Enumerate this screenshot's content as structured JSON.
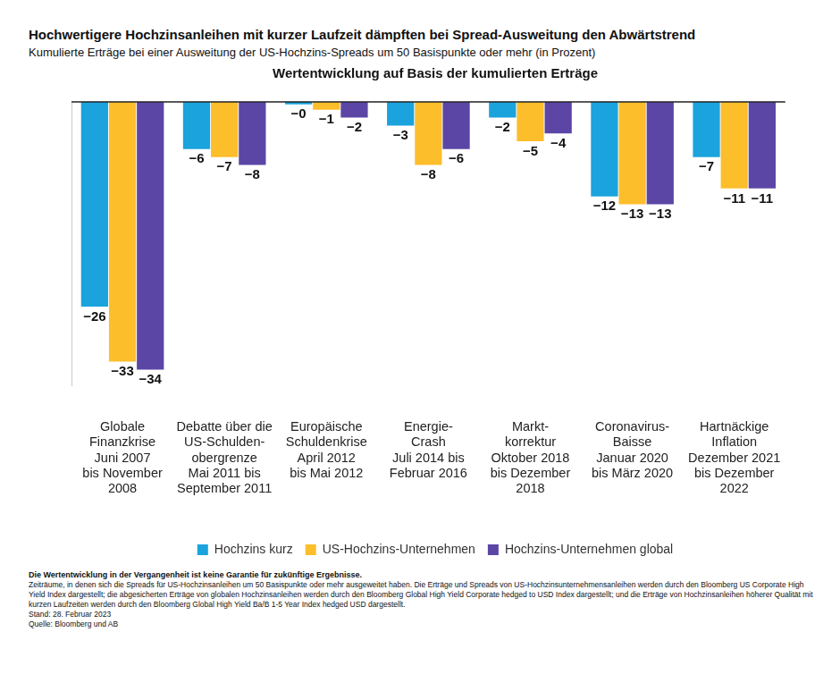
{
  "chart_data": {
    "type": "bar",
    "title": "Hochwertigere Hochzinsanleihen mit kurzer Laufzeit dämpften bei Spread-Ausweitung den Abwärtstrend",
    "subtitle": "Kumulierte Erträge bei einer Ausweitung der US-Hochzins-Spreads um 50 Basispunkte oder mehr (in Prozent)",
    "chart_title": "Wertentwicklung auf Basis der kumulierten Erträge",
    "categories": [
      [
        "Globale",
        "Finanzkrise",
        "Juni 2007",
        "bis November",
        "2008"
      ],
      [
        "Debatte über die",
        "US-Schulden-",
        "obergrenze",
        "Mai 2011 bis",
        "September 2011"
      ],
      [
        "Europäische",
        "Schuldenkrise",
        "April 2012",
        "bis Mai 2012"
      ],
      [
        "Energie-",
        "Crash",
        "Juli 2014 bis",
        "Februar 2016"
      ],
      [
        "Markt-",
        "korrektur",
        "Oktober 2018",
        "bis Dezember",
        "2018"
      ],
      [
        "Coronavirus-",
        "Baisse",
        "Januar 2020",
        "bis März 2020"
      ],
      [
        "Hartnäckige",
        "Inflation",
        "Dezember 2021",
        "bis Dezember",
        "2022"
      ]
    ],
    "series": [
      {
        "name": "Hochzins kurz",
        "color": "#1ba3dd",
        "values": [
          -26,
          -6,
          -0.3,
          -3,
          -2,
          -12,
          -7
        ],
        "value_labels": [
          "−26",
          "−6",
          "−0",
          "−3",
          "−2",
          "−12",
          "−7"
        ]
      },
      {
        "name": "US-Hochzins-Unternehmen",
        "color": "#fdbe2c",
        "values": [
          -33,
          -7,
          -1,
          -8,
          -5,
          -13,
          -11
        ],
        "value_labels": [
          "−33",
          "−7",
          "−1",
          "−8",
          "−5",
          "−13",
          "−11"
        ]
      },
      {
        "name": "Hochzins-Unternehmen global",
        "color": "#5b46a6",
        "values": [
          -34,
          -8,
          -2,
          -6,
          -4,
          -13,
          -11
        ],
        "value_labels": [
          "−34",
          "−8",
          "−2",
          "−6",
          "−4",
          "−13",
          "−11"
        ]
      }
    ],
    "ylim": [
      -36,
      0
    ],
    "grid": false,
    "legend": "bottom",
    "data_labels": true,
    "tick_labels": "x",
    "notes": [
      "Die Wertentwicklung in der Vergangenheit ist keine Garantie für zukünftige Ergebnisse.",
      "Zeiträume, in denen sich die Spreads für US-Hochzinsanleihen um 50 Basispunkte oder mehr ausgeweitet haben. Die Erträge und Spreads von US-Hochzinsunternehmensanleihen werden durch den Bloomberg US Corporate High Yield Index dargestellt; die abgesicherten Erträge von globalen Hochzinsanleihen werden durch den Bloomberg Global High Yield Corporate hedged to USD Index dargestellt; und die Erträge von Hochzinsanleihen höherer Qualität mit kurzen Laufzeiten werden durch den Bloomberg Global High Yield Ba/B 1-5 Year Index hedged USD dargestellt.",
      "Stand: 28. Februar 2023",
      "Quelle: Bloomberg und AB"
    ]
  }
}
